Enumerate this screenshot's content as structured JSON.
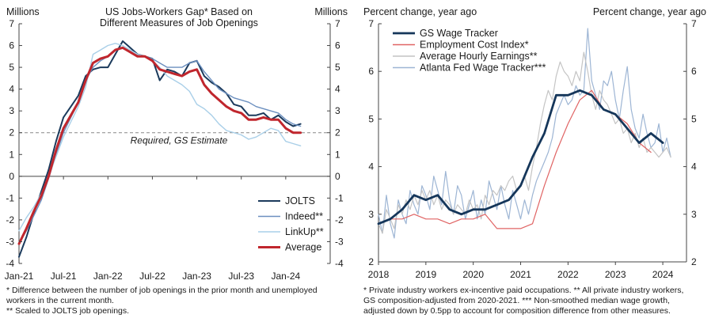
{
  "chart_data": [
    {
      "type": "line",
      "title": "US Jobs-Workers Gap* Based on Different Measures of Job Openings",
      "title_lines": [
        "US Jobs-Workers Gap* Based on",
        "Different Measures of Job Openings"
      ],
      "ylabel_left": "Millions",
      "ylabel_right": "Millions",
      "ylim": [
        -4,
        7
      ],
      "yticks": [
        -4,
        -3,
        -2,
        -1,
        0,
        1,
        2,
        3,
        4,
        5,
        6,
        7
      ],
      "xlim": [
        2021.0,
        2024.5
      ],
      "xticks": [
        {
          "x": 2021.0,
          "label": "Jan-21"
        },
        {
          "x": 2021.5,
          "label": "Jul-21"
        },
        {
          "x": 2022.0,
          "label": "Jan-22"
        },
        {
          "x": 2022.5,
          "label": "Jul-22"
        },
        {
          "x": 2023.0,
          "label": "Jan-23"
        },
        {
          "x": 2023.5,
          "label": "Jul-23"
        },
        {
          "x": 2024.0,
          "label": "Jan-24"
        }
      ],
      "reference_line": {
        "y": 2,
        "label": "Required, GS Estimate"
      },
      "legend_position": "bottom-right",
      "series": [
        {
          "name": "JOLTS",
          "color": "#1b3a5c",
          "width": 2.0,
          "x": [
            2021.0,
            2021.083,
            2021.167,
            2021.25,
            2021.333,
            2021.417,
            2021.5,
            2021.583,
            2021.667,
            2021.75,
            2021.833,
            2021.917,
            2022.0,
            2022.083,
            2022.167,
            2022.25,
            2022.333,
            2022.417,
            2022.5,
            2022.583,
            2022.667,
            2022.75,
            2022.833,
            2022.917,
            2023.0,
            2023.083,
            2023.167,
            2023.25,
            2023.333,
            2023.417,
            2023.5,
            2023.583,
            2023.667,
            2023.75,
            2023.833,
            2023.917,
            2024.0,
            2024.083,
            2024.167
          ],
          "y": [
            -3.7,
            -2.8,
            -1.7,
            -0.7,
            0.3,
            1.6,
            2.7,
            3.2,
            3.7,
            4.6,
            4.9,
            5.0,
            5.0,
            5.6,
            6.2,
            5.9,
            5.6,
            5.5,
            5.4,
            4.4,
            4.9,
            4.8,
            4.6,
            5.2,
            5.3,
            4.6,
            4.3,
            4.1,
            3.8,
            3.3,
            3.2,
            2.8,
            2.8,
            2.9,
            2.6,
            2.8,
            2.5,
            2.3,
            2.4
          ]
        },
        {
          "name": "Indeed**",
          "color": "#6b8fbf",
          "width": 1.4,
          "x": [
            2021.0,
            2021.083,
            2021.167,
            2021.25,
            2021.333,
            2021.417,
            2021.5,
            2021.583,
            2021.667,
            2021.75,
            2021.833,
            2021.917,
            2022.0,
            2022.083,
            2022.167,
            2022.25,
            2022.333,
            2022.417,
            2022.5,
            2022.583,
            2022.667,
            2022.75,
            2022.833,
            2022.917,
            2023.0,
            2023.083,
            2023.167,
            2023.25,
            2023.333,
            2023.417,
            2023.5,
            2023.583,
            2023.667,
            2023.75,
            2023.833,
            2023.917,
            2024.0,
            2024.083,
            2024.167
          ],
          "y": [
            -3.1,
            -2.5,
            -1.8,
            -1.1,
            -0.1,
            1.0,
            2.0,
            2.7,
            3.4,
            4.4,
            5.0,
            5.3,
            5.5,
            5.8,
            5.9,
            5.7,
            5.5,
            5.5,
            5.4,
            5.2,
            5.0,
            5.0,
            5.0,
            5.2,
            5.3,
            4.8,
            4.4,
            4.0,
            3.8,
            3.6,
            3.5,
            3.4,
            3.2,
            3.1,
            3.0,
            2.9,
            2.6,
            2.4,
            2.3
          ]
        },
        {
          "name": "LinkUp**",
          "color": "#a9cfe8",
          "width": 1.4,
          "x": [
            2021.0,
            2021.083,
            2021.167,
            2021.25,
            2021.333,
            2021.417,
            2021.5,
            2021.583,
            2021.667,
            2021.75,
            2021.833,
            2021.917,
            2022.0,
            2022.083,
            2022.167,
            2022.25,
            2022.333,
            2022.417,
            2022.5,
            2022.583,
            2022.667,
            2022.75,
            2022.833,
            2022.917,
            2023.0,
            2023.083,
            2023.167,
            2023.25,
            2023.333,
            2023.417,
            2023.5,
            2023.583,
            2023.667,
            2023.75,
            2023.833,
            2023.917,
            2024.0,
            2024.083,
            2024.167
          ],
          "y": [
            -2.5,
            -1.9,
            -1.4,
            -0.8,
            0.0,
            0.9,
            1.8,
            2.5,
            3.2,
            4.1,
            5.6,
            5.8,
            6.0,
            6.1,
            6.0,
            5.8,
            5.6,
            5.5,
            5.3,
            5.0,
            4.6,
            4.4,
            4.2,
            3.9,
            3.3,
            3.1,
            2.8,
            2.4,
            2.1,
            2.0,
            1.9,
            1.7,
            1.8,
            2.0,
            2.2,
            2.1,
            1.6,
            1.5,
            1.4
          ]
        },
        {
          "name": "Average",
          "color": "#c0262d",
          "width": 3.0,
          "x": [
            2021.0,
            2021.083,
            2021.167,
            2021.25,
            2021.333,
            2021.417,
            2021.5,
            2021.583,
            2021.667,
            2021.75,
            2021.833,
            2021.917,
            2022.0,
            2022.083,
            2022.167,
            2022.25,
            2022.333,
            2022.417,
            2022.5,
            2022.583,
            2022.667,
            2022.75,
            2022.833,
            2022.917,
            2023.0,
            2023.083,
            2023.167,
            2023.25,
            2023.333,
            2023.417,
            2023.5,
            2023.583,
            2023.667,
            2023.75,
            2023.833,
            2023.917,
            2024.0,
            2024.083,
            2024.167
          ],
          "y": [
            -3.1,
            -2.4,
            -1.6,
            -0.9,
            0.0,
            1.2,
            2.2,
            2.8,
            3.4,
            4.4,
            5.2,
            5.4,
            5.5,
            5.8,
            5.9,
            5.7,
            5.5,
            5.5,
            5.3,
            4.9,
            4.8,
            4.7,
            4.6,
            4.8,
            4.9,
            4.2,
            3.8,
            3.5,
            3.2,
            3.0,
            2.9,
            2.6,
            2.6,
            2.7,
            2.6,
            2.6,
            2.2,
            2.0,
            2.0
          ]
        }
      ]
    },
    {
      "type": "line",
      "ylabel_left": "Percent change, year ago",
      "ylabel_right": "Percent change, year ago",
      "ylim": [
        2,
        7
      ],
      "yticks": [
        2,
        3,
        4,
        5,
        6,
        7
      ],
      "xlim": [
        2018.0,
        2024.5
      ],
      "xticks": [
        {
          "x": 2018.0,
          "label": "2018"
        },
        {
          "x": 2019.0,
          "label": "2019"
        },
        {
          "x": 2020.0,
          "label": "2020"
        },
        {
          "x": 2021.0,
          "label": "2021"
        },
        {
          "x": 2022.0,
          "label": "2022"
        },
        {
          "x": 2023.0,
          "label": "2023"
        },
        {
          "x": 2024.0,
          "label": "2024"
        }
      ],
      "legend_position": "top-left",
      "series": [
        {
          "name": "Atlanta Fed Wage Tracker***",
          "color": "#9db5d4",
          "width": 1.2,
          "x": [
            2018.0,
            2018.083,
            2018.167,
            2018.25,
            2018.333,
            2018.417,
            2018.5,
            2018.583,
            2018.667,
            2018.75,
            2018.833,
            2018.917,
            2019.0,
            2019.083,
            2019.167,
            2019.25,
            2019.333,
            2019.417,
            2019.5,
            2019.583,
            2019.667,
            2019.75,
            2019.833,
            2019.917,
            2020.0,
            2020.083,
            2020.167,
            2020.25,
            2020.333,
            2020.417,
            2020.5,
            2020.583,
            2020.667,
            2020.75,
            2020.833,
            2020.917,
            2021.0,
            2021.083,
            2021.167,
            2021.25,
            2021.333,
            2021.417,
            2021.5,
            2021.583,
            2021.667,
            2021.75,
            2021.833,
            2021.917,
            2022.0,
            2022.083,
            2022.167,
            2022.25,
            2022.333,
            2022.417,
            2022.5,
            2022.583,
            2022.667,
            2022.75,
            2022.833,
            2022.917,
            2023.0,
            2023.083,
            2023.167,
            2023.25,
            2023.333,
            2023.417,
            2023.5,
            2023.583,
            2023.667,
            2023.75,
            2023.833,
            2023.917,
            2024.0,
            2024.083,
            2024.167
          ],
          "y": [
            3.0,
            2.6,
            3.4,
            2.8,
            2.5,
            3.3,
            3.0,
            2.8,
            3.5,
            3.2,
            3.0,
            3.6,
            3.4,
            3.1,
            3.8,
            3.5,
            3.2,
            3.9,
            3.3,
            3.0,
            3.6,
            3.4,
            2.9,
            3.2,
            3.5,
            2.9,
            3.3,
            3.0,
            3.7,
            3.4,
            3.1,
            3.6,
            3.2,
            2.9,
            3.5,
            3.2,
            2.9,
            3.3,
            3.0,
            3.4,
            3.7,
            3.9,
            4.1,
            4.3,
            4.6,
            5.1,
            5.3,
            5.5,
            5.3,
            5.4,
            5.7,
            5.5,
            5.6,
            6.9,
            5.8,
            5.5,
            5.2,
            5.8,
            5.7,
            6.0,
            5.4,
            5.0,
            5.6,
            6.1,
            5.2,
            4.8,
            4.6,
            5.1,
            4.7,
            4.4,
            4.5,
            4.9,
            4.3,
            4.6,
            4.2
          ]
        },
        {
          "name": "Average Hourly Earnings**",
          "color": "#c4c4c4",
          "width": 1.2,
          "x": [
            2018.0,
            2018.083,
            2018.167,
            2018.25,
            2018.333,
            2018.417,
            2018.5,
            2018.583,
            2018.667,
            2018.75,
            2018.833,
            2018.917,
            2019.0,
            2019.083,
            2019.167,
            2019.25,
            2019.333,
            2019.417,
            2019.5,
            2019.583,
            2019.667,
            2019.75,
            2019.833,
            2019.917,
            2020.0,
            2020.083,
            2020.167,
            2020.25,
            2020.333,
            2020.417,
            2020.5,
            2020.583,
            2020.667,
            2020.75,
            2020.833,
            2020.917,
            2021.0,
            2021.083,
            2021.167,
            2021.25,
            2021.333,
            2021.417,
            2021.5,
            2021.583,
            2021.667,
            2021.75,
            2021.833,
            2021.917,
            2022.0,
            2022.083,
            2022.167,
            2022.25,
            2022.333,
            2022.417,
            2022.5,
            2022.583,
            2022.667,
            2022.75,
            2022.833,
            2022.917,
            2023.0,
            2023.083,
            2023.167,
            2023.25,
            2023.333,
            2023.417,
            2023.5,
            2023.583,
            2023.667,
            2023.75,
            2023.833,
            2023.917,
            2024.0,
            2024.083,
            2024.167
          ],
          "y": [
            2.8,
            2.6,
            3.1,
            2.9,
            2.7,
            3.2,
            3.0,
            3.3,
            3.1,
            3.4,
            3.2,
            3.5,
            3.3,
            3.5,
            3.2,
            3.4,
            3.1,
            3.3,
            3.2,
            3.0,
            3.2,
            3.1,
            3.0,
            3.3,
            3.1,
            3.2,
            2.9,
            3.4,
            3.2,
            3.5,
            3.4,
            3.6,
            3.5,
            3.7,
            3.8,
            3.5,
            3.6,
            3.8,
            3.5,
            4.0,
            4.4,
            4.9,
            5.3,
            5.6,
            5.4,
            5.9,
            6.2,
            6.0,
            5.9,
            5.7,
            6.0,
            5.8,
            6.4,
            6.0,
            5.5,
            5.2,
            5.6,
            5.4,
            5.3,
            5.1,
            4.9,
            5.0,
            4.7,
            4.8,
            4.5,
            4.7,
            4.4,
            4.6,
            4.3,
            4.4,
            4.3,
            4.2,
            4.3,
            4.4,
            4.2
          ]
        },
        {
          "name": "Employment Cost Index*",
          "color": "#e06464",
          "width": 1.2,
          "x": [
            2018.0,
            2018.25,
            2018.5,
            2018.75,
            2019.0,
            2019.25,
            2019.5,
            2019.75,
            2020.0,
            2020.25,
            2020.5,
            2020.75,
            2021.0,
            2021.25,
            2021.5,
            2021.75,
            2022.0,
            2022.25,
            2022.5,
            2022.75,
            2023.0,
            2023.25,
            2023.5,
            2023.75
          ],
          "y": [
            2.8,
            2.9,
            2.9,
            3.0,
            2.9,
            2.9,
            2.8,
            2.9,
            2.9,
            3.0,
            2.7,
            2.7,
            2.7,
            2.8,
            3.6,
            4.3,
            4.9,
            5.4,
            5.6,
            5.2,
            5.1,
            4.9,
            4.5,
            4.3
          ]
        },
        {
          "name": "GS Wage Tracker",
          "color": "#15365a",
          "width": 2.8,
          "x": [
            2018.0,
            2018.25,
            2018.5,
            2018.75,
            2019.0,
            2019.25,
            2019.5,
            2019.75,
            2020.0,
            2020.25,
            2020.5,
            2020.75,
            2021.0,
            2021.25,
            2021.5,
            2021.75,
            2022.0,
            2022.25,
            2022.5,
            2022.75,
            2023.0,
            2023.25,
            2023.5,
            2023.75,
            2024.0
          ],
          "y": [
            2.8,
            2.9,
            3.1,
            3.4,
            3.3,
            3.4,
            3.1,
            3.0,
            3.1,
            3.1,
            3.2,
            3.3,
            3.6,
            4.2,
            4.7,
            5.5,
            5.5,
            5.6,
            5.5,
            5.2,
            5.1,
            4.8,
            4.5,
            4.7,
            4.5
          ]
        }
      ]
    }
  ],
  "footnotes": {
    "left": [
      "* Difference between the number of job openings in the prior month and unemployed",
      "workers in the current month.",
      "** Scaled to JOLTS job openings."
    ],
    "right": [
      "* Private industry workers ex-incentive paid occupations. ** All private industry workers,",
      "GS composition-adjusted from 2020-2021. *** Non-smoothed median wage growth,",
      "adjusted down by 0.5pp to account for composition difference from other measures."
    ]
  }
}
